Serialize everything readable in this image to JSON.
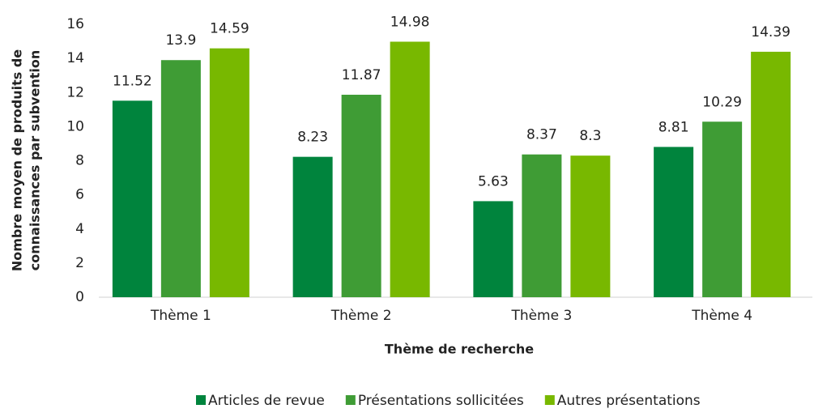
{
  "chart_data": {
    "type": "bar",
    "ylabel": [
      "Nombre moyen de produits de",
      "connaissances par subvention"
    ],
    "xlabel": "Thème de recherche",
    "categories": [
      "Thème 1",
      "Thème 2",
      "Thème 3",
      "Thème 4"
    ],
    "series": [
      {
        "name": "Articles de revue",
        "color": "#00843d",
        "values": [
          11.52,
          8.23,
          5.63,
          8.81
        ]
      },
      {
        "name": "Présentations sollicitées",
        "color": "#3f9c35",
        "values": [
          13.9,
          11.87,
          8.37,
          10.29
        ]
      },
      {
        "name": "Autres présentations",
        "color": "#78b800",
        "values": [
          14.59,
          14.98,
          8.3,
          14.39
        ]
      }
    ],
    "ylim": [
      0,
      16
    ],
    "yticks": [
      0,
      2,
      4,
      6,
      8,
      10,
      12,
      14,
      16
    ],
    "grid": false,
    "legend": "bottom"
  }
}
